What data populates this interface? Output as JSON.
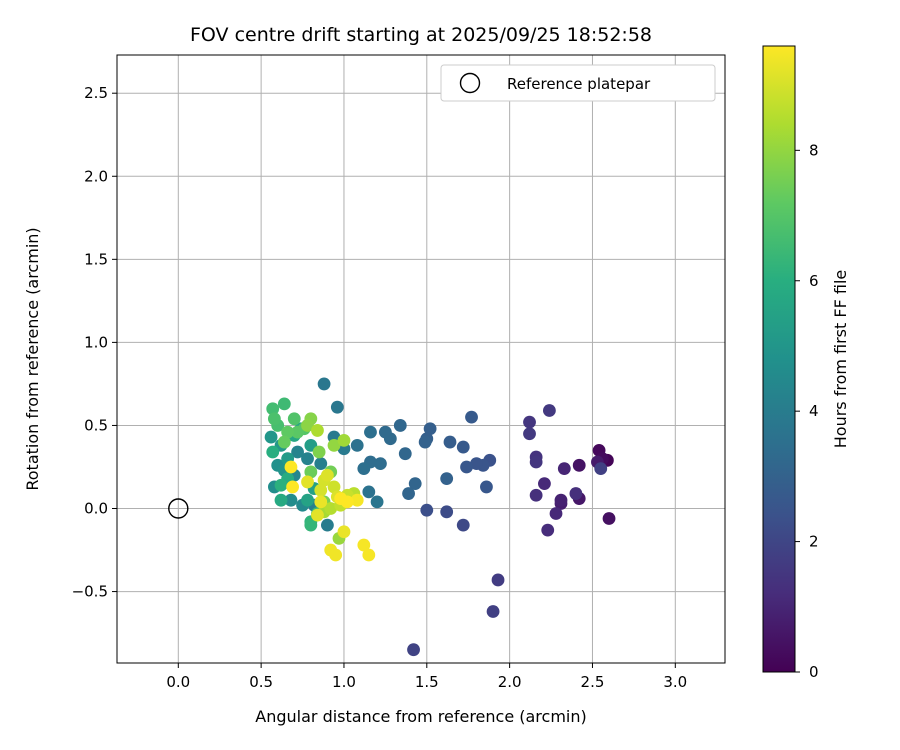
{
  "chart_data": {
    "type": "scatter",
    "title": "FOV centre drift starting at 2025/09/25 18:52:58",
    "xlabel": "Angular distance from reference (arcmin)",
    "ylabel": "Rotation from reference (arcmin)",
    "xlim": [
      -0.37,
      3.3
    ],
    "ylim": [
      -0.93,
      2.73
    ],
    "xticks": [
      0.0,
      0.5,
      1.0,
      1.5,
      2.0,
      2.5,
      3.0
    ],
    "xtick_labels": [
      "0.0",
      "0.5",
      "1.0",
      "1.5",
      "2.0",
      "2.5",
      "3.0"
    ],
    "yticks": [
      -0.5,
      0.0,
      0.5,
      1.0,
      1.5,
      2.0,
      2.5
    ],
    "ytick_labels": [
      "−0.5",
      "0.0",
      "0.5",
      "1.0",
      "1.5",
      "2.0",
      "2.5"
    ],
    "grid": true,
    "legend": {
      "position": "top-right",
      "entries": [
        "Reference platepar"
      ]
    },
    "reference_point": {
      "label": "Reference platepar",
      "x": 0.0,
      "y": 0.0
    },
    "colorbar": {
      "label": "Hours from first FF file",
      "colormap": "viridis",
      "range": [
        0,
        9.6
      ],
      "ticks": [
        0,
        2,
        4,
        6,
        8
      ],
      "tick_labels": [
        "0",
        "2",
        "4",
        "6",
        "8"
      ]
    },
    "points": [
      {
        "x": 2.59,
        "y": 0.29,
        "c": 0.1
      },
      {
        "x": 2.54,
        "y": 0.35,
        "c": 0.2
      },
      {
        "x": 2.56,
        "y": 0.3,
        "c": 0.3
      },
      {
        "x": 2.6,
        "y": -0.06,
        "c": 0.4
      },
      {
        "x": 2.42,
        "y": 0.26,
        "c": 0.5
      },
      {
        "x": 2.42,
        "y": 0.06,
        "c": 0.6
      },
      {
        "x": 2.53,
        "y": 0.28,
        "c": 0.7
      },
      {
        "x": 2.31,
        "y": 0.03,
        "c": 0.8
      },
      {
        "x": 2.31,
        "y": 0.05,
        "c": 0.9
      },
      {
        "x": 2.33,
        "y": 0.24,
        "c": 1.0
      },
      {
        "x": 2.21,
        "y": 0.15,
        "c": 1.1
      },
      {
        "x": 2.28,
        "y": -0.03,
        "c": 1.1
      },
      {
        "x": 2.23,
        "y": -0.13,
        "c": 1.2
      },
      {
        "x": 2.4,
        "y": 0.09,
        "c": 1.3
      },
      {
        "x": 2.16,
        "y": 0.08,
        "c": 1.3
      },
      {
        "x": 2.16,
        "y": 0.31,
        "c": 1.4
      },
      {
        "x": 2.16,
        "y": 0.28,
        "c": 1.5
      },
      {
        "x": 2.12,
        "y": 0.52,
        "c": 1.5
      },
      {
        "x": 2.24,
        "y": 0.59,
        "c": 1.6
      },
      {
        "x": 2.12,
        "y": 0.45,
        "c": 1.6
      },
      {
        "x": 2.55,
        "y": 0.24,
        "c": 1.8
      },
      {
        "x": 1.93,
        "y": -0.43,
        "c": 1.7
      },
      {
        "x": 1.9,
        "y": -0.62,
        "c": 1.8
      },
      {
        "x": 1.42,
        "y": -0.85,
        "c": 1.9
      },
      {
        "x": 1.72,
        "y": -0.1,
        "c": 2.1
      },
      {
        "x": 1.62,
        "y": -0.02,
        "c": 2.2
      },
      {
        "x": 1.5,
        "y": -0.01,
        "c": 2.3
      },
      {
        "x": 1.88,
        "y": 0.29,
        "c": 2.4
      },
      {
        "x": 1.84,
        "y": 0.26,
        "c": 2.5
      },
      {
        "x": 1.8,
        "y": 0.27,
        "c": 2.5
      },
      {
        "x": 1.74,
        "y": 0.25,
        "c": 2.6
      },
      {
        "x": 1.86,
        "y": 0.13,
        "c": 2.6
      },
      {
        "x": 1.77,
        "y": 0.55,
        "c": 2.7
      },
      {
        "x": 1.72,
        "y": 0.37,
        "c": 2.7
      },
      {
        "x": 1.64,
        "y": 0.4,
        "c": 2.8
      },
      {
        "x": 1.52,
        "y": 0.48,
        "c": 2.9
      },
      {
        "x": 1.5,
        "y": 0.42,
        "c": 2.9
      },
      {
        "x": 1.49,
        "y": 0.4,
        "c": 3.0
      },
      {
        "x": 1.62,
        "y": 0.18,
        "c": 3.0
      },
      {
        "x": 1.43,
        "y": 0.15,
        "c": 3.1
      },
      {
        "x": 1.39,
        "y": 0.09,
        "c": 3.1
      },
      {
        "x": 1.37,
        "y": 0.33,
        "c": 3.2
      },
      {
        "x": 1.34,
        "y": 0.5,
        "c": 3.2
      },
      {
        "x": 1.28,
        "y": 0.42,
        "c": 3.3
      },
      {
        "x": 1.25,
        "y": 0.46,
        "c": 3.3
      },
      {
        "x": 1.22,
        "y": 0.27,
        "c": 3.4
      },
      {
        "x": 1.16,
        "y": 0.28,
        "c": 3.4
      },
      {
        "x": 1.16,
        "y": 0.46,
        "c": 3.5
      },
      {
        "x": 1.12,
        "y": 0.24,
        "c": 3.5
      },
      {
        "x": 1.08,
        "y": 0.38,
        "c": 3.6
      },
      {
        "x": 1.15,
        "y": 0.1,
        "c": 3.6
      },
      {
        "x": 1.2,
        "y": 0.04,
        "c": 3.7
      },
      {
        "x": 0.88,
        "y": 0.75,
        "c": 3.8
      },
      {
        "x": 0.96,
        "y": 0.61,
        "c": 3.8
      },
      {
        "x": 1.0,
        "y": 0.36,
        "c": 3.9
      },
      {
        "x": 0.94,
        "y": 0.43,
        "c": 3.9
      },
      {
        "x": 0.9,
        "y": -0.1,
        "c": 4.0
      },
      {
        "x": 0.82,
        "y": 0.02,
        "c": 4.1
      },
      {
        "x": 0.86,
        "y": 0.27,
        "c": 4.1
      },
      {
        "x": 0.78,
        "y": 0.3,
        "c": 4.2
      },
      {
        "x": 0.72,
        "y": 0.34,
        "c": 4.3
      },
      {
        "x": 0.7,
        "y": 0.2,
        "c": 4.4
      },
      {
        "x": 0.75,
        "y": 0.02,
        "c": 4.5
      },
      {
        "x": 0.68,
        "y": 0.05,
        "c": 4.6
      },
      {
        "x": 0.58,
        "y": 0.13,
        "c": 4.7
      },
      {
        "x": 0.6,
        "y": 0.26,
        "c": 4.8
      },
      {
        "x": 0.64,
        "y": 0.23,
        "c": 4.9
      },
      {
        "x": 0.56,
        "y": 0.43,
        "c": 5.0
      },
      {
        "x": 0.62,
        "y": 0.38,
        "c": 5.1
      },
      {
        "x": 0.66,
        "y": 0.3,
        "c": 5.2
      },
      {
        "x": 0.8,
        "y": 0.38,
        "c": 5.3
      },
      {
        "x": 0.82,
        "y": 0.12,
        "c": 5.4
      },
      {
        "x": 0.78,
        "y": 0.05,
        "c": 5.5
      },
      {
        "x": 0.74,
        "y": 0.48,
        "c": 5.6
      },
      {
        "x": 0.7,
        "y": 0.44,
        "c": 5.7
      },
      {
        "x": 0.62,
        "y": 0.05,
        "c": 5.8
      },
      {
        "x": 0.66,
        "y": 0.18,
        "c": 5.9
      },
      {
        "x": 0.57,
        "y": 0.34,
        "c": 6.0
      },
      {
        "x": 0.62,
        "y": 0.14,
        "c": 6.1
      },
      {
        "x": 0.8,
        "y": -0.08,
        "c": 6.2
      },
      {
        "x": 0.8,
        "y": -0.1,
        "c": 6.3
      },
      {
        "x": 0.84,
        "y": -0.03,
        "c": 6.4
      },
      {
        "x": 0.64,
        "y": 0.63,
        "c": 6.5
      },
      {
        "x": 0.57,
        "y": 0.6,
        "c": 6.6
      },
      {
        "x": 0.6,
        "y": 0.5,
        "c": 6.7
      },
      {
        "x": 0.58,
        "y": 0.54,
        "c": 6.8
      },
      {
        "x": 0.7,
        "y": 0.54,
        "c": 6.9
      },
      {
        "x": 0.76,
        "y": 0.48,
        "c": 7.0
      },
      {
        "x": 0.72,
        "y": 0.46,
        "c": 7.1
      },
      {
        "x": 0.66,
        "y": 0.46,
        "c": 7.2
      },
      {
        "x": 0.64,
        "y": 0.4,
        "c": 7.3
      },
      {
        "x": 0.8,
        "y": 0.22,
        "c": 7.4
      },
      {
        "x": 0.92,
        "y": 0.22,
        "c": 7.5
      },
      {
        "x": 0.88,
        "y": 0.04,
        "c": 7.6
      },
      {
        "x": 0.85,
        "y": 0.34,
        "c": 7.7
      },
      {
        "x": 0.8,
        "y": 0.54,
        "c": 7.8
      },
      {
        "x": 0.78,
        "y": 0.5,
        "c": 7.9
      },
      {
        "x": 0.94,
        "y": 0.38,
        "c": 8.0
      },
      {
        "x": 0.97,
        "y": -0.18,
        "c": 8.1
      },
      {
        "x": 1.0,
        "y": 0.41,
        "c": 8.2
      },
      {
        "x": 0.88,
        "y": -0.02,
        "c": 8.3
      },
      {
        "x": 0.84,
        "y": 0.47,
        "c": 8.4
      },
      {
        "x": 0.92,
        "y": 0.0,
        "c": 8.5
      },
      {
        "x": 1.06,
        "y": 0.09,
        "c": 8.6
      },
      {
        "x": 0.98,
        "y": 0.02,
        "c": 8.7
      },
      {
        "x": 1.02,
        "y": 0.08,
        "c": 8.8
      },
      {
        "x": 0.94,
        "y": 0.13,
        "c": 8.9
      },
      {
        "x": 0.88,
        "y": 0.17,
        "c": 9.0
      },
      {
        "x": 0.86,
        "y": 0.11,
        "c": 9.0
      },
      {
        "x": 0.9,
        "y": 0.2,
        "c": 9.1
      },
      {
        "x": 0.96,
        "y": 0.07,
        "c": 9.1
      },
      {
        "x": 0.78,
        "y": 0.16,
        "c": 9.2
      },
      {
        "x": 0.84,
        "y": -0.04,
        "c": 9.2
      },
      {
        "x": 0.86,
        "y": 0.04,
        "c": 9.3
      },
      {
        "x": 1.0,
        "y": -0.14,
        "c": 9.3
      },
      {
        "x": 0.92,
        "y": -0.25,
        "c": 9.4
      },
      {
        "x": 0.95,
        "y": -0.28,
        "c": 9.4
      },
      {
        "x": 1.12,
        "y": -0.22,
        "c": 9.5
      },
      {
        "x": 1.15,
        "y": -0.28,
        "c": 9.5
      },
      {
        "x": 1.08,
        "y": 0.05,
        "c": 9.5
      },
      {
        "x": 1.02,
        "y": 0.04,
        "c": 9.6
      },
      {
        "x": 0.98,
        "y": 0.06,
        "c": 9.6
      },
      {
        "x": 0.69,
        "y": 0.13,
        "c": 9.6
      },
      {
        "x": 0.68,
        "y": 0.25,
        "c": 9.6
      }
    ]
  }
}
